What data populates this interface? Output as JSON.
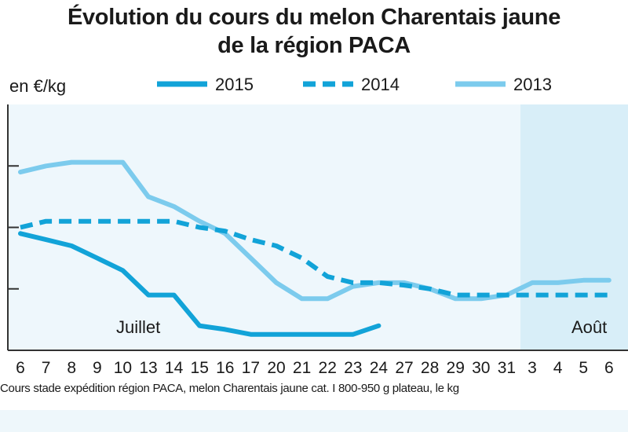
{
  "chart_data": {
    "type": "line",
    "title_line1": "Évolution du cours du melon Charentais jaune",
    "title_line2": "de la région PACA",
    "ylabel": "en €/kg",
    "x": [
      "6",
      "7",
      "8",
      "9",
      "10",
      "13",
      "14",
      "15",
      "16",
      "17",
      "20",
      "21",
      "22",
      "23",
      "24",
      "27",
      "28",
      "29",
      "30",
      "31",
      "3",
      "4",
      "5",
      "6"
    ],
    "month_labels": [
      "Juillet",
      "Août"
    ],
    "august_start_index": 20,
    "series": [
      {
        "name": "2015",
        "style": "solid",
        "color": "#12a3d8",
        "values": [
          2.7,
          2.65,
          2.6,
          2.5,
          2.4,
          2.2,
          2.2,
          1.95,
          1.92,
          1.88,
          1.88,
          1.88,
          1.88,
          1.88,
          1.95,
          null,
          null,
          null,
          null,
          null,
          null,
          null,
          null,
          null
        ]
      },
      {
        "name": "2014",
        "style": "dashed",
        "color": "#12a3d8",
        "values": [
          2.75,
          2.8,
          2.8,
          2.8,
          2.8,
          2.8,
          2.8,
          2.75,
          2.72,
          2.65,
          2.6,
          2.5,
          2.35,
          2.3,
          2.3,
          2.28,
          2.25,
          2.2,
          2.2,
          2.2,
          2.2,
          2.2,
          2.2,
          2.2
        ]
      },
      {
        "name": "2013",
        "style": "solid",
        "color": "#7ccbed",
        "values": [
          3.2,
          3.25,
          3.28,
          3.28,
          3.28,
          3.0,
          2.92,
          2.8,
          2.7,
          2.5,
          2.3,
          2.17,
          2.17,
          2.27,
          2.3,
          2.3,
          2.25,
          2.17,
          2.17,
          2.2,
          2.3,
          2.3,
          2.32,
          2.32
        ]
      }
    ],
    "ylim": [
      1.75,
      3.75
    ],
    "y_gridlines": [
      2.25,
      2.75,
      3.25
    ],
    "legend_position": "top",
    "grid": false
  },
  "source_note": "Cours stade expédition région PACA, melon Charentais jaune cat. I 800-950 g plateau, le kg"
}
